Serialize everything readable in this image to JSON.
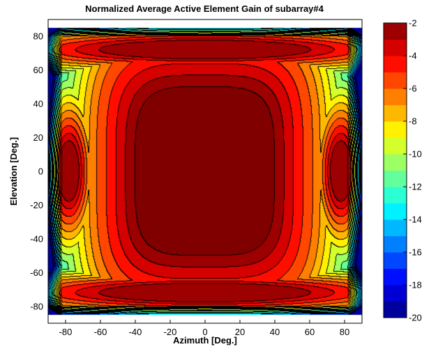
{
  "chart_data": {
    "type": "heatmap",
    "subtype": "filled-contour",
    "title": "Normalized Average Active Element Gain of subarray#4",
    "xlabel": "Azimuth [Deg.]",
    "ylabel": "Elevation [Deg.]",
    "xlim": [
      -90,
      90
    ],
    "ylim": [
      -90,
      90
    ],
    "xticks": [
      -80,
      -60,
      -40,
      -20,
      0,
      20,
      40,
      60,
      80
    ],
    "yticks": [
      -80,
      -60,
      -40,
      -20,
      0,
      20,
      40,
      60,
      80
    ],
    "colorbar": {
      "range": [
        -20,
        -2
      ],
      "ticks": [
        -2,
        -4,
        -6,
        -8,
        -10,
        -12,
        -14,
        -16,
        -18,
        -20
      ],
      "levels": [
        -20,
        -19,
        -18,
        -17,
        -16,
        -15,
        -14,
        -13,
        -12,
        -11,
        -10,
        -9,
        -8,
        -7,
        -6,
        -5,
        -4,
        -3,
        -2
      ],
      "colormap": "jet"
    },
    "grid": false,
    "regions": [
      {
        "name": "main lobe",
        "center": [
          0,
          0
        ],
        "half_width_az": 40,
        "half_height_el": 50,
        "value": -2
      },
      {
        "name": "upper band",
        "center": [
          0,
          72
        ],
        "half_width_az": 54,
        "half_height_el": 5,
        "value": -2.5
      },
      {
        "name": "lower band",
        "center": [
          0,
          -72
        ],
        "half_width_az": 54,
        "half_height_el": 5,
        "value": -2.5
      },
      {
        "name": "left lobe",
        "center": [
          -78,
          0
        ],
        "half_width_az": 6,
        "half_height_el": 18,
        "value": -3
      },
      {
        "name": "right lobe",
        "center": [
          78,
          0
        ],
        "half_width_az": 6,
        "half_height_el": 18,
        "value": -3
      }
    ],
    "visible_region": {
      "max_abs_azimuth": 90,
      "max_abs_elevation": 85
    }
  }
}
